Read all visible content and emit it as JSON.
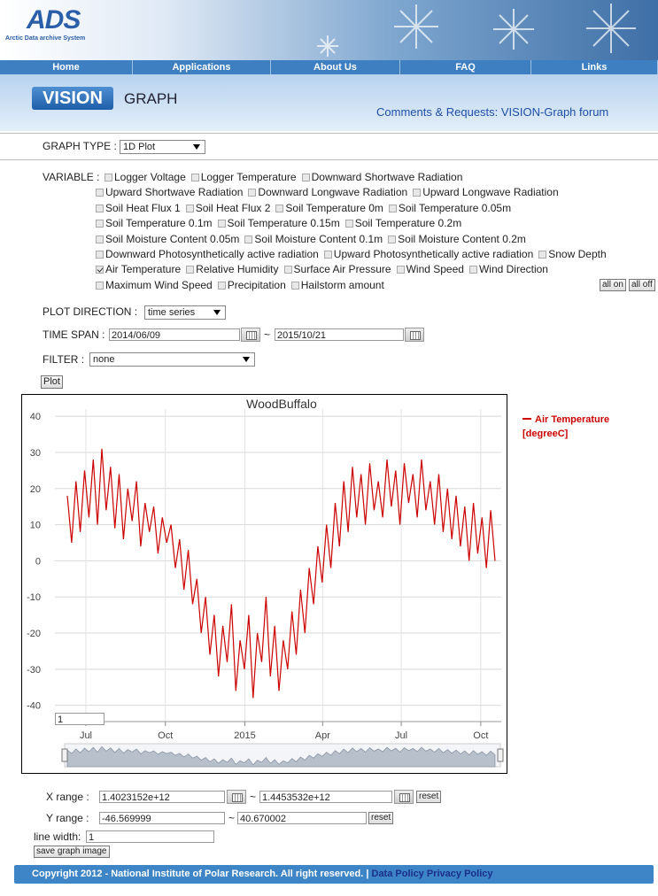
{
  "header": {
    "logo": "ADS",
    "logo_subtitle": "Arctic Data archive System",
    "nav": [
      "Home",
      "Applications",
      "About Us",
      "FAQ",
      "Links"
    ]
  },
  "app": {
    "logo": "VISION",
    "title": "GRAPH",
    "forum": "Comments & Requests: VISION-Graph forum"
  },
  "form": {
    "graph_type_label": "GRAPH TYPE :",
    "graph_type": "1D Plot",
    "variable_label": "VARIABLE :",
    "variable_rows": [
      [
        {
          "label": "Logger Voltage",
          "checked": false
        },
        {
          "label": "Logger Temperature",
          "checked": false
        },
        {
          "label": "Downward Shortwave Radiation",
          "checked": false
        }
      ],
      [
        {
          "label": "Upward Shortwave Radiation",
          "checked": false
        },
        {
          "label": "Downward Longwave Radiation",
          "checked": false
        },
        {
          "label": "Upward Longwave Radiation",
          "checked": false
        }
      ],
      [
        {
          "label": "Soil Heat Flux 1",
          "checked": false
        },
        {
          "label": "Soil Heat Flux 2",
          "checked": false
        },
        {
          "label": "Soil Temperature 0m",
          "checked": false
        },
        {
          "label": "Soil Temperature 0.05m",
          "checked": false
        }
      ],
      [
        {
          "label": "Soil Temperature 0.1m",
          "checked": false
        },
        {
          "label": "Soil Temperature 0.15m",
          "checked": false
        },
        {
          "label": "Soil Temperature 0.2m",
          "checked": false
        }
      ],
      [
        {
          "label": "Soil Moisture Content 0.05m",
          "checked": false
        },
        {
          "label": "Soil Moisture Content 0.1m",
          "checked": false
        },
        {
          "label": "Soil Moisture Content 0.2m",
          "checked": false
        }
      ],
      [
        {
          "label": "Downward Photosynthetically active radiation",
          "checked": false
        },
        {
          "label": "Upward Photosynthetically active radiation",
          "checked": false
        },
        {
          "label": "Snow Depth",
          "checked": false
        }
      ],
      [
        {
          "label": "Air Temperature",
          "checked": true
        },
        {
          "label": "Relative Humidity",
          "checked": false
        },
        {
          "label": "Surface Air Pressure",
          "checked": false
        },
        {
          "label": "Wind Speed",
          "checked": false
        },
        {
          "label": "Wind Direction",
          "checked": false
        }
      ],
      [
        {
          "label": "Maximum Wind Speed",
          "checked": false
        },
        {
          "label": "Precipitation",
          "checked": false
        },
        {
          "label": "Hailstorm amount",
          "checked": false
        }
      ]
    ],
    "all_on": "all on",
    "all_off": "all off",
    "plot_direction_label": "PLOT DIRECTION :",
    "plot_direction": "time series",
    "time_span_label": "TIME SPAN :",
    "time_from": "2014/06/09",
    "separator": "~",
    "time_to": "2015/10/21",
    "filter_label": "FILTER :",
    "filter": "none",
    "plot_button": "Plot"
  },
  "chart_data": {
    "type": "line",
    "title": "WoodBuffalo",
    "xlim": [
      1402315200000,
      1445353200000
    ],
    "xticks": [
      {
        "value": 1404172800000,
        "label": "Jul"
      },
      {
        "value": 1412121600000,
        "label": "Oct"
      },
      {
        "value": 1420070400000,
        "label": "2015"
      },
      {
        "value": 1427846400000,
        "label": "Apr"
      },
      {
        "value": 1435708800000,
        "label": "Jul"
      },
      {
        "value": 1443657600000,
        "label": "Oct"
      }
    ],
    "ylim": [
      -44.5,
      42
    ],
    "yticks": [
      -40,
      -30,
      -20,
      -10,
      0,
      10,
      20,
      30,
      40
    ],
    "grid": true,
    "series": [
      {
        "name": "Air Temperature [degreeC]",
        "color": "#cc0000",
        "x": [
          1402315200000,
          1402747200000,
          1403179200000,
          1403611200000,
          1404043200000,
          1404475200000,
          1404907200000,
          1405339200000,
          1405771200000,
          1406203200000,
          1406635200000,
          1407067200000,
          1407499200000,
          1407931200000,
          1408363200000,
          1408795200000,
          1409227200000,
          1409659200000,
          1410091200000,
          1410523200000,
          1410955200000,
          1411387200000,
          1411819200000,
          1412251200000,
          1412683200000,
          1413115200000,
          1413547200000,
          1413979200000,
          1414411200000,
          1414843200000,
          1415275200000,
          1415707200000,
          1416139200000,
          1416571200000,
          1417003200000,
          1417435200000,
          1417867200000,
          1418299200000,
          1418731200000,
          1419163200000,
          1419595200000,
          1420027200000,
          1420459200000,
          1420891200000,
          1421323200000,
          1421755200000,
          1422187200000,
          1422619200000,
          1423051200000,
          1423483200000,
          1423915200000,
          1424347200000,
          1424779200000,
          1425211200000,
          1425643200000,
          1426075200000,
          1426507200000,
          1426939200000,
          1427371200000,
          1427803200000,
          1428235200000,
          1428667200000,
          1429099200000,
          1429531200000,
          1429963200000,
          1430395200000,
          1430827200000,
          1431259200000,
          1431691200000,
          1432123200000,
          1432555200000,
          1432987200000,
          1433419200000,
          1433851200000,
          1434283200000,
          1434715200000,
          1435147200000,
          1435579200000,
          1436011200000,
          1436443200000,
          1436875200000,
          1437307200000,
          1437739200000,
          1438171200000,
          1438603200000,
          1439035200000,
          1439467200000,
          1439899200000,
          1440331200000,
          1440763200000,
          1441195200000,
          1441627200000,
          1442059200000,
          1442491200000,
          1442923200000,
          1443355200000,
          1443787200000,
          1444219200000,
          1444651200000,
          1445083200000
        ],
        "values": [
          18,
          5,
          22,
          8,
          25,
          12,
          28,
          10,
          31,
          14,
          26,
          9,
          24,
          6,
          20,
          11,
          22,
          4,
          16,
          8,
          15,
          2,
          12,
          5,
          10,
          -2,
          6,
          -8,
          3,
          -12,
          -5,
          -20,
          -10,
          -26,
          -15,
          -32,
          -18,
          -28,
          -12,
          -36,
          -22,
          -30,
          -15,
          -38,
          -20,
          -28,
          -10,
          -32,
          -18,
          -36,
          -22,
          -30,
          -14,
          -26,
          -8,
          -20,
          -2,
          -12,
          4,
          -6,
          10,
          -2,
          16,
          4,
          22,
          8,
          26,
          12,
          24,
          10,
          27,
          14,
          22,
          12,
          28,
          15,
          25,
          10,
          27,
          16,
          24,
          12,
          28,
          14,
          22,
          10,
          24,
          8,
          20,
          6,
          18,
          4,
          15,
          0,
          16,
          2,
          12,
          -2,
          14,
          0
        ]
      }
    ]
  },
  "controls": {
    "zoom_input": "1",
    "x_range_label": "X range :",
    "x_from": "1.4023152e+12",
    "x_to": "1.4453532e+12",
    "reset": "reset",
    "y_range_label": "Y range :",
    "y_from": "-46.569999",
    "y_to": "40.670002",
    "line_width_label": "line width:",
    "line_width": "1",
    "save": "save graph image"
  },
  "footer": {
    "copyright": "Copyright 2012 - National Institute of Polar Research. All right reserved. |",
    "links": [
      "Data Policy",
      "Privacy Policy"
    ]
  }
}
